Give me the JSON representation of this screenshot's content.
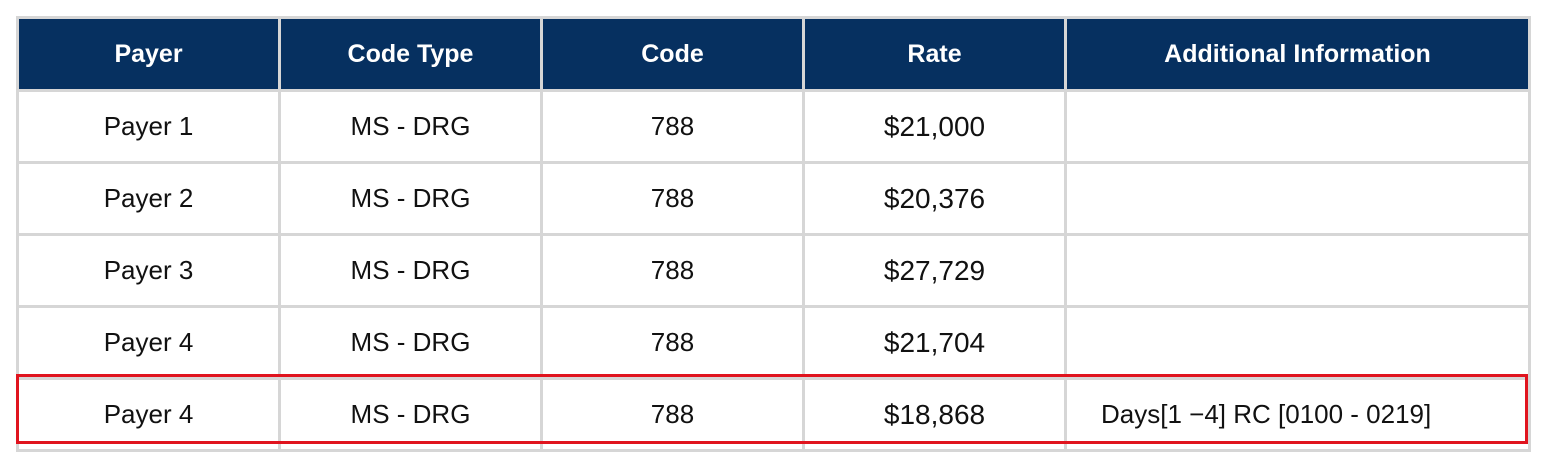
{
  "table": {
    "headers": [
      "Payer",
      "Code Type",
      "Code",
      "Rate",
      "Additional Information"
    ],
    "rows": [
      {
        "payer": "Payer 1",
        "code_type": "MS - DRG",
        "code": "788",
        "rate": "$21,000",
        "info": ""
      },
      {
        "payer": "Payer 2",
        "code_type": "MS - DRG",
        "code": "788",
        "rate": "$20,376",
        "info": ""
      },
      {
        "payer": "Payer 3",
        "code_type": "MS - DRG",
        "code": "788",
        "rate": "$27,729",
        "info": ""
      },
      {
        "payer": "Payer 4",
        "code_type": "MS - DRG",
        "code": "788",
        "rate": "$21,704",
        "info": ""
      },
      {
        "payer": "Payer 4",
        "code_type": "MS - DRG",
        "code": "788",
        "rate": "$18,868",
        "info": "Days[1 −4] RC [0100 - 0219]"
      }
    ]
  },
  "colors": {
    "header_bg": "#063060",
    "header_text": "#ffffff",
    "grid": "#d6d6d6",
    "highlight": "#e0141e"
  }
}
